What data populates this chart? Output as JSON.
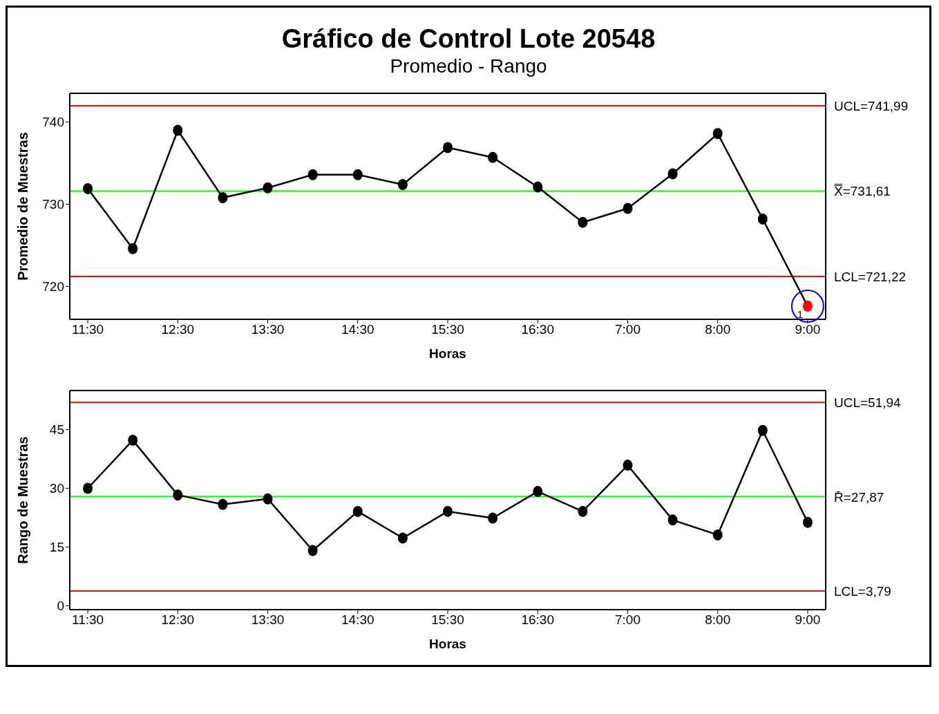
{
  "chart_data": [
    {
      "type": "line",
      "title": "Gráfico de Control Lote 20548",
      "subtitle": "Promedio - Rango",
      "xlabel": "Horas",
      "ylabel": "Promedio de Muestras",
      "categories": [
        "11:30",
        null,
        "12:30",
        null,
        "13:30",
        null,
        "14:30",
        null,
        "15:30",
        null,
        "16:30",
        null,
        "7:00",
        null,
        "8:00",
        null,
        "9:00"
      ],
      "series": [
        {
          "color": "#000000",
          "colors": [
            "#000000",
            "#000000",
            "#000000",
            "#000000",
            "#000000",
            "#000000",
            "#000000",
            "#000000",
            "#000000",
            "#000000",
            "#000000",
            "#000000",
            "#000000",
            "#000000",
            "#000000",
            "#000000",
            "#ff0000"
          ],
          "values": [
            731.9,
            724.6,
            739.0,
            730.8,
            732.0,
            733.6,
            733.6,
            732.4,
            736.9,
            735.7,
            732.1,
            727.8,
            729.5,
            733.7,
            738.6,
            728.2,
            717.6
          ]
        }
      ],
      "ylim": [
        716,
        743.5
      ],
      "yticks": [
        720,
        730,
        740
      ],
      "grid": false,
      "legend": false,
      "marker": "circle",
      "line_style": "solid",
      "ref_lines": [
        {
          "axis": "y",
          "value": 741.99,
          "label": "UCL=741,99",
          "color": "#ff0000"
        },
        {
          "axis": "y",
          "value": 731.61,
          "label": "X̿=731,61",
          "color": "#00ff00"
        },
        {
          "axis": "y",
          "value": 721.22,
          "label": "LCL=721,22",
          "color": "#ff0000"
        }
      ],
      "annotations": [
        {
          "text": "1",
          "x": "9:00",
          "y": 717.6
        }
      ]
    },
    {
      "type": "line",
      "xlabel": "Horas",
      "ylabel": "Rango de Muestras",
      "categories": [
        "11:30",
        null,
        "12:30",
        null,
        "13:30",
        null,
        "14:30",
        null,
        "15:30",
        null,
        "16:30",
        null,
        "7:00",
        null,
        "8:00",
        null,
        "9:00"
      ],
      "series": [
        {
          "color": "#000000",
          "values": [
            30.0,
            42.3,
            28.3,
            25.9,
            27.3,
            14.1,
            24.1,
            17.3,
            24.1,
            22.4,
            29.2,
            24.1,
            35.9,
            21.9,
            18.1,
            44.8,
            21.3
          ]
        }
      ],
      "ylim": [
        -1,
        55
      ],
      "yticks": [
        0,
        15,
        30,
        45
      ],
      "grid": false,
      "legend": false,
      "marker": "circle",
      "line_style": "solid",
      "ref_lines": [
        {
          "axis": "y",
          "value": 51.94,
          "label": "UCL=51,94",
          "color": "#ff0000"
        },
        {
          "axis": "y",
          "value": 27.87,
          "label": "R̄=27,87",
          "color": "#00ff00"
        },
        {
          "axis": "y",
          "value": 3.79,
          "label": "LCL=3,79",
          "color": "#ff0000"
        }
      ]
    }
  ]
}
